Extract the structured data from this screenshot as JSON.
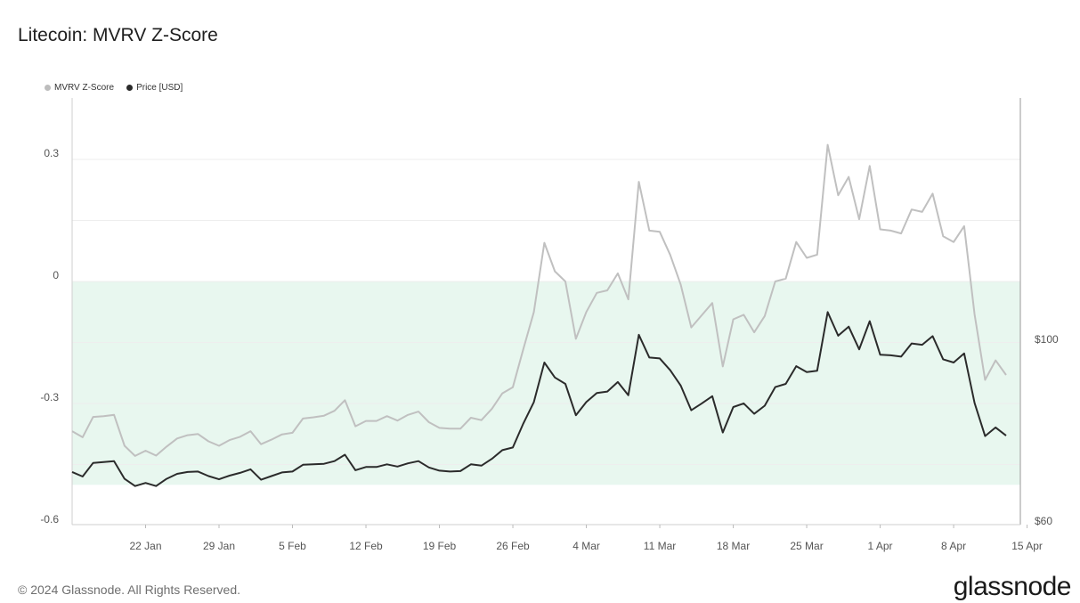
{
  "header": {
    "title": "Litecoin: MVRV Z-Score"
  },
  "legend": {
    "items": [
      {
        "label": "MVRV Z-Score",
        "color": "#bdbdbd"
      },
      {
        "label": "Price [USD]",
        "color": "#2b2b2b"
      }
    ]
  },
  "footer": {
    "copyright": "© 2024 Glassnode. All Rights Reserved.",
    "brand": "glassnode"
  },
  "colors": {
    "band": "#e8f7ef",
    "mvrv": "#c0c0c0",
    "price": "#2b2b2b",
    "grid": "#eeeeee"
  },
  "chart_data": {
    "type": "line",
    "title": "Litecoin: MVRV Z-Score",
    "xlabel": "",
    "ylabel": "",
    "grid": true,
    "legend_position": "top-left",
    "x_tick_labels": [
      "22 Jan",
      "29 Jan",
      "5 Feb",
      "12 Feb",
      "19 Feb",
      "26 Feb",
      "4 Mar",
      "11 Mar",
      "18 Mar",
      "25 Mar",
      "1 Apr",
      "8 Apr",
      "15 Apr"
    ],
    "x_tick_days": [
      7,
      14,
      21,
      28,
      35,
      42,
      49,
      56,
      63,
      70,
      77,
      84,
      91
    ],
    "x_range_days": [
      0,
      92
    ],
    "y_left": {
      "ticks": [
        "0.3",
        "0",
        "-0.3",
        "-0.6"
      ],
      "tick_values": [
        0.3,
        0,
        -0.3,
        -0.6
      ],
      "range": [
        -0.6,
        0.44
      ]
    },
    "y_right": {
      "ticks": [
        "$100",
        "$60"
      ],
      "tick_values": [
        100,
        60
      ],
      "range": [
        60,
        100
      ]
    },
    "shaded_band": {
      "from": -0.5,
      "to": 0,
      "axis": "left"
    },
    "series": [
      {
        "name": "MVRV Z-Score",
        "axis": "left",
        "values": [
          -0.368,
          -0.383,
          -0.333,
          -0.331,
          -0.328,
          -0.404,
          -0.429,
          -0.416,
          -0.428,
          -0.406,
          -0.386,
          -0.378,
          -0.375,
          -0.393,
          -0.404,
          -0.39,
          -0.382,
          -0.368,
          -0.4,
          -0.389,
          -0.376,
          -0.372,
          -0.337,
          -0.334,
          -0.33,
          -0.318,
          -0.292,
          -0.356,
          -0.343,
          -0.343,
          -0.331,
          -0.342,
          -0.328,
          -0.32,
          -0.346,
          -0.36,
          -0.362,
          -0.362,
          -0.335,
          -0.341,
          -0.313,
          -0.275,
          -0.26,
          -0.166,
          -0.075,
          0.095,
          0.025,
          0.0,
          -0.141,
          -0.075,
          -0.028,
          -0.022,
          0.02,
          -0.044,
          0.245,
          0.125,
          0.122,
          0.065,
          -0.008,
          -0.113,
          -0.083,
          -0.053,
          -0.209,
          -0.093,
          -0.082,
          -0.125,
          -0.085,
          0.0,
          0.007,
          0.097,
          0.058,
          0.066,
          0.336,
          0.212,
          0.257,
          0.153,
          0.284,
          0.128,
          0.125,
          0.118,
          0.177,
          0.171,
          0.216,
          0.111,
          0.097,
          0.136,
          -0.081,
          -0.242,
          -0.194,
          -0.23
        ]
      },
      {
        "name": "Price [USD]",
        "axis": "right",
        "values": [
          70.8,
          69.8,
          72.8,
          73.0,
          73.2,
          69.3,
          67.7,
          68.4,
          67.7,
          69.3,
          70.4,
          70.8,
          70.9,
          69.9,
          69.2,
          70.0,
          70.6,
          71.4,
          69.1,
          69.9,
          70.7,
          70.9,
          72.4,
          72.5,
          72.6,
          73.2,
          74.6,
          71.2,
          71.9,
          71.9,
          72.5,
          72.0,
          72.7,
          73.2,
          71.8,
          71.1,
          70.9,
          71.0,
          72.5,
          72.2,
          73.7,
          75.6,
          76.2,
          81.5,
          86.2,
          94.9,
          91.6,
          90.2,
          83.3,
          86.2,
          88.2,
          88.5,
          90.6,
          87.7,
          101.0,
          96.0,
          95.8,
          93.2,
          89.8,
          84.4,
          85.9,
          87.5,
          79.5,
          85.1,
          85.9,
          83.6,
          85.4,
          89.5,
          90.2,
          94.1,
          92.8,
          93.1,
          106.0,
          100.8,
          102.8,
          97.8,
          104.0,
          96.6,
          96.5,
          96.2,
          99.1,
          98.8,
          100.7,
          95.6,
          94.9,
          96.9,
          86.0,
          78.7,
          80.6,
          78.8
        ]
      }
    ]
  }
}
